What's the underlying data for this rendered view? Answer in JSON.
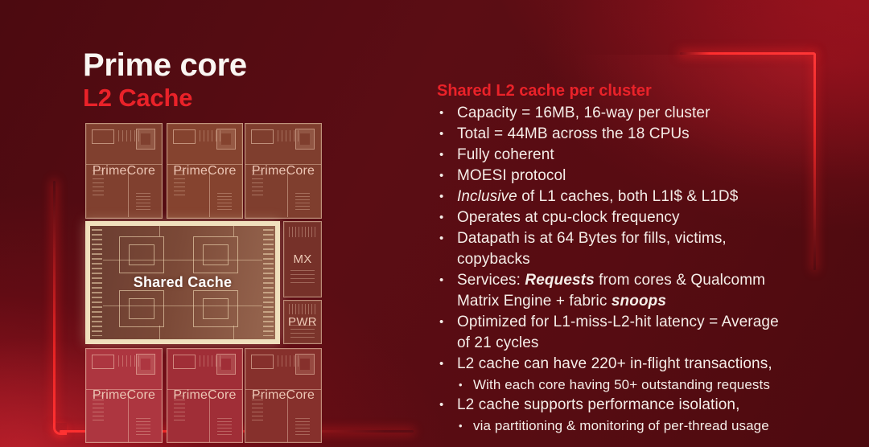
{
  "slide": {
    "title_line1": "Prime core",
    "title_line2": "L2 Cache"
  },
  "chip": {
    "core_line1": "Prime",
    "core_line2": "Core",
    "shared_label": "Shared Cache",
    "mx_label": "MX",
    "pwr_label": "PWR"
  },
  "panel": {
    "heading": "Shared L2 cache per cluster",
    "bullets": [
      {
        "level": 1,
        "segments": [
          {
            "t": "Capacity = 16MB, 16-way per cluster"
          }
        ]
      },
      {
        "level": 1,
        "segments": [
          {
            "t": "Total = 44MB across the 18 CPUs"
          }
        ]
      },
      {
        "level": 1,
        "segments": [
          {
            "t": "Fully coherent"
          }
        ]
      },
      {
        "level": 1,
        "segments": [
          {
            "t": "MOESI protocol"
          }
        ]
      },
      {
        "level": 1,
        "segments": [
          {
            "t": "Inclusive",
            "i": true
          },
          {
            "t": " of L1 caches, both L1I$ & L1D$"
          }
        ]
      },
      {
        "level": 1,
        "segments": [
          {
            "t": "Operates at cpu-clock frequency"
          }
        ]
      },
      {
        "level": 1,
        "segments": [
          {
            "t": "Datapath is at 64 Bytes for fills, victims,"
          },
          {
            "br": true
          },
          {
            "t": "copybacks"
          }
        ]
      },
      {
        "level": 1,
        "segments": [
          {
            "t": "Services: "
          },
          {
            "t": "Requests",
            "b": true,
            "i": true
          },
          {
            "t": " from cores & Qualcomm"
          },
          {
            "br": true
          },
          {
            "t": "Matrix Engine + fabric "
          },
          {
            "t": "snoops",
            "b": true,
            "i": true
          }
        ]
      },
      {
        "level": 1,
        "segments": [
          {
            "t": "Optimized for L1-miss-L2-hit latency = Average"
          },
          {
            "br": true
          },
          {
            "t": "of 21 cycles"
          }
        ]
      },
      {
        "level": 1,
        "segments": [
          {
            "t": "L2 cache can have 220+ in-flight transactions,"
          }
        ]
      },
      {
        "level": 2,
        "segments": [
          {
            "t": "With each core having 50+ outstanding requests"
          }
        ]
      },
      {
        "level": 1,
        "segments": [
          {
            "t": "L2 cache supports performance isolation,"
          }
        ]
      },
      {
        "level": 2,
        "segments": [
          {
            "t": "via partitioning & monitoring of per-thread usage"
          }
        ]
      }
    ]
  },
  "colors": {
    "accent_red": "#ea2229",
    "glow_red": "#ff3232",
    "background_maroon": "#4c0a10",
    "chip_highlight_cream": "#f0e0bd",
    "body_text": "#f5ede8",
    "chip_label_text": "#ecc9b6"
  }
}
